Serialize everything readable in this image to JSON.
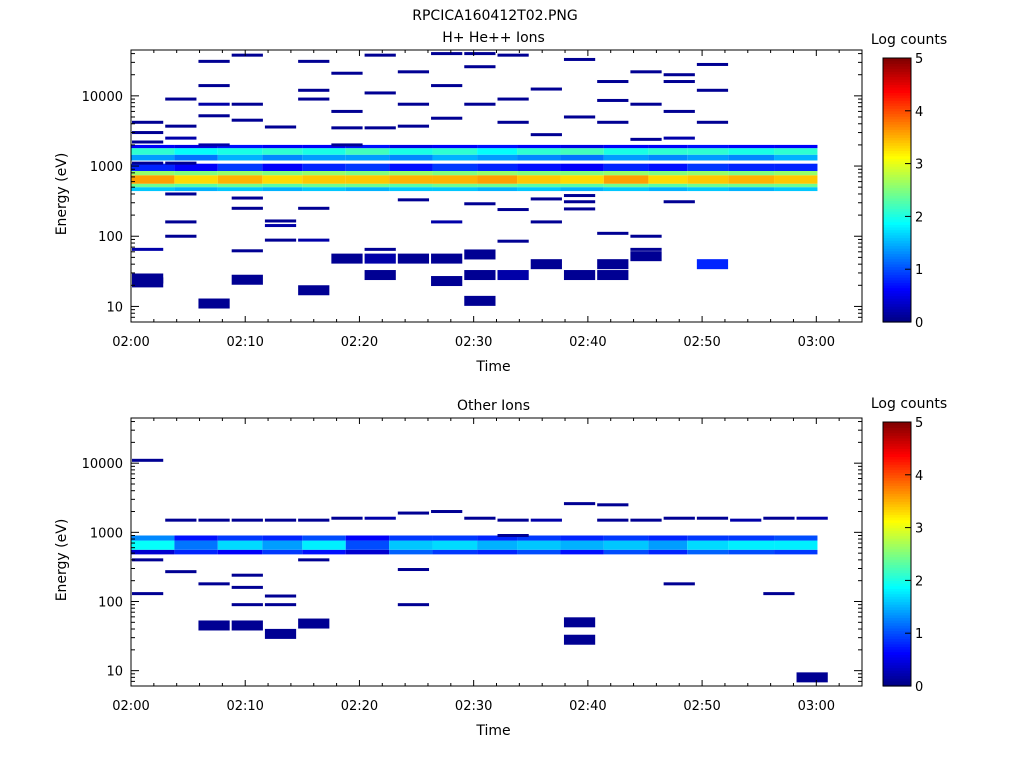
{
  "figure_title": "RPCICA160412T02.PNG",
  "colormap": [
    "#00007f",
    "#0000ff",
    "#007fff",
    "#00ffff",
    "#7fff7f",
    "#ffff00",
    "#ff7f00",
    "#ff0000",
    "#7f0000"
  ],
  "chart_data": [
    {
      "type": "heatmap",
      "title": "H+ He++ Ions",
      "xlabel": "Time",
      "ylabel": "Energy (eV)",
      "x_ticks": [
        "02:00",
        "02:10",
        "02:20",
        "02:30",
        "02:40",
        "02:50",
        "03:00"
      ],
      "y_ticks": [
        "10",
        "100",
        "1000",
        "10000"
      ],
      "y_scale": "log",
      "ylim": [
        6,
        45000
      ],
      "xlim_minutes": [
        0,
        64
      ],
      "colorbar": {
        "label": "Log counts",
        "range": [
          0,
          5
        ],
        "ticks": [
          "0",
          "1",
          "2",
          "3",
          "4",
          "5"
        ]
      },
      "time_bins_minutes": [
        0,
        3.8,
        7.6,
        11.5,
        15,
        18.8,
        22.6,
        26.4,
        30.3,
        33.8,
        37.6,
        41.4,
        45.3,
        48.7,
        52.3,
        56.3,
        60.1
      ],
      "bands": [
        {
          "e_min": 440,
          "e_max": 500,
          "values": [
            1.6,
            1.5,
            1.6,
            1.5,
            1.6,
            1.5,
            1.6,
            1.6,
            1.5,
            1.6,
            1.5,
            1.6,
            1.5,
            1.6,
            1.5,
            1.6
          ]
        },
        {
          "e_min": 500,
          "e_max": 560,
          "values": [
            2.4,
            2.3,
            2.4,
            2.3,
            2.4,
            2.4,
            2.3,
            2.4,
            2.4,
            2.3,
            2.3,
            2.4,
            2.3,
            2.4,
            2.4,
            2.4
          ]
        },
        {
          "e_min": 560,
          "e_max": 740,
          "values": [
            3.6,
            3.3,
            3.5,
            3.3,
            3.4,
            3.4,
            3.5,
            3.5,
            3.6,
            3.4,
            3.3,
            3.6,
            3.3,
            3.4,
            3.5,
            3.4
          ]
        },
        {
          "e_min": 740,
          "e_max": 850,
          "values": [
            2.6,
            2.5,
            2.6,
            2.5,
            2.6,
            2.5,
            2.6,
            2.5,
            2.6,
            2.5,
            2.5,
            2.6,
            2.5,
            2.6,
            2.5,
            2.6
          ]
        },
        {
          "e_min": 850,
          "e_max": 1080,
          "values": [
            0.8,
            0.6,
            0.9,
            0.6,
            0.8,
            0.9,
            0.7,
            0.9,
            0.8,
            0.7,
            0.6,
            0.8,
            0.7,
            0.9,
            0.8,
            0.8
          ]
        },
        {
          "e_min": 1200,
          "e_max": 1450,
          "values": [
            1.4,
            1.2,
            1.5,
            1.3,
            1.4,
            1.4,
            1.3,
            1.5,
            1.4,
            1.3,
            1.2,
            1.4,
            1.3,
            1.4,
            1.3,
            1.5
          ]
        },
        {
          "e_min": 1450,
          "e_max": 1800,
          "values": [
            2.1,
            1.9,
            2.0,
            2.1,
            2.0,
            2.2,
            2.0,
            2.1,
            1.9,
            2.1,
            2.2,
            2.0,
            2.1,
            2.1,
            2.0,
            2.1
          ]
        },
        {
          "e_min": 1800,
          "e_max": 2000,
          "values": [
            0.6,
            0.5,
            0.7,
            0.6,
            0.6,
            0.7,
            0.5,
            0.6,
            0.7,
            0.6,
            0.5,
            0.6,
            0.6,
            0.7,
            0.6,
            0.6
          ]
        }
      ],
      "scatter": [
        [
          0,
          2200,
          0.1
        ],
        [
          0,
          1100,
          0.1
        ],
        [
          0,
          4200,
          0.1
        ],
        [
          0,
          3000,
          0.1
        ],
        [
          0,
          25,
          0.1
        ],
        [
          0,
          22,
          0.1
        ],
        [
          0,
          65,
          0.2
        ],
        [
          1,
          3700,
          0.1
        ],
        [
          1,
          1100,
          0.1
        ],
        [
          1,
          9000,
          0.1
        ],
        [
          1,
          2500,
          0.2
        ],
        [
          1,
          160,
          0.1
        ],
        [
          1,
          100,
          0.1
        ],
        [
          1,
          400,
          0.1
        ],
        [
          2,
          31000,
          0.1
        ],
        [
          2,
          14000,
          0.1
        ],
        [
          2,
          5200,
          0.1
        ],
        [
          2,
          2000,
          0.2
        ],
        [
          2,
          11,
          0.1
        ],
        [
          2,
          7600,
          0.2
        ],
        [
          3,
          38000,
          0.1
        ],
        [
          3,
          7600,
          0.1
        ],
        [
          3,
          4500,
          0.1
        ],
        [
          3,
          350,
          0.1
        ],
        [
          3,
          250,
          0.1
        ],
        [
          3,
          62,
          0.1
        ],
        [
          3,
          24,
          0.1
        ],
        [
          4,
          3600,
          0.1
        ],
        [
          4,
          165,
          0.1
        ],
        [
          4,
          142,
          0.2
        ],
        [
          4,
          88,
          0.1
        ],
        [
          5,
          31000,
          0.1
        ],
        [
          5,
          9000,
          0.1
        ],
        [
          5,
          12000,
          0.1
        ],
        [
          5,
          250,
          0.1
        ],
        [
          5,
          88,
          0.2
        ],
        [
          5,
          17,
          0.1
        ],
        [
          6,
          21000,
          0.1
        ],
        [
          6,
          6000,
          0.1
        ],
        [
          6,
          3500,
          0.1
        ],
        [
          6,
          2000,
          0.1
        ],
        [
          6,
          48,
          0.1
        ],
        [
          7,
          38000,
          0.1
        ],
        [
          7,
          11000,
          0.1
        ],
        [
          7,
          3500,
          0.1
        ],
        [
          7,
          65,
          0.1
        ],
        [
          7,
          28,
          0.1
        ],
        [
          7,
          48,
          0.2
        ],
        [
          8,
          22000,
          0.1
        ],
        [
          8,
          7600,
          0.1
        ],
        [
          8,
          3700,
          0.1
        ],
        [
          8,
          330,
          0.1
        ],
        [
          8,
          48,
          0.1
        ],
        [
          9,
          40000,
          0.1
        ],
        [
          9,
          14000,
          0.1
        ],
        [
          9,
          4800,
          0.1
        ],
        [
          9,
          160,
          0.2
        ],
        [
          9,
          23,
          0.1
        ],
        [
          9,
          48,
          0.1
        ],
        [
          10,
          40000,
          0.1
        ],
        [
          10,
          26000,
          0.1
        ],
        [
          10,
          7600,
          0.1
        ],
        [
          10,
          290,
          0.1
        ],
        [
          10,
          55,
          0.1
        ],
        [
          10,
          28,
          0.1
        ],
        [
          10,
          12,
          0.1
        ],
        [
          11,
          38000,
          0.1
        ],
        [
          11,
          9000,
          0.1
        ],
        [
          11,
          4200,
          0.1
        ],
        [
          11,
          240,
          0.1
        ],
        [
          11,
          85,
          0.1
        ],
        [
          11,
          28,
          0.2
        ],
        [
          12,
          12500,
          0.1
        ],
        [
          12,
          2800,
          0.1
        ],
        [
          12,
          340,
          0.1
        ],
        [
          12,
          160,
          0.1
        ],
        [
          12,
          40,
          0.1
        ],
        [
          13,
          33000,
          0.1
        ],
        [
          13,
          5000,
          0.1
        ],
        [
          13,
          380,
          0.1
        ],
        [
          13,
          310,
          0.1
        ],
        [
          13,
          245,
          0.1
        ],
        [
          13,
          28,
          0.1
        ],
        [
          14,
          16000,
          0.1
        ],
        [
          14,
          8600,
          0.1
        ],
        [
          14,
          4200,
          0.1
        ],
        [
          14,
          110,
          0.1
        ],
        [
          14,
          40,
          0.1
        ],
        [
          14,
          28,
          0.1
        ],
        [
          15,
          22000,
          0.1
        ],
        [
          15,
          7600,
          0.1
        ],
        [
          15,
          2400,
          0.1
        ],
        [
          15,
          100,
          0.1
        ],
        [
          15,
          65,
          0.1
        ],
        [
          15,
          52,
          0.1
        ],
        [
          16,
          20000,
          0.1
        ],
        [
          16,
          16000,
          0.1
        ],
        [
          16,
          6000,
          0.1
        ],
        [
          16,
          2500,
          0.2
        ],
        [
          16,
          310,
          0.1
        ],
        [
          17,
          28000,
          0.1
        ],
        [
          17,
          12000,
          0.1
        ],
        [
          17,
          4200,
          0.1
        ],
        [
          17,
          40,
          0.8
        ]
      ]
    },
    {
      "type": "heatmap",
      "title": "Other Ions",
      "xlabel": "Time",
      "ylabel": "Energy (eV)",
      "x_ticks": [
        "02:00",
        "02:10",
        "02:20",
        "02:30",
        "02:40",
        "02:50",
        "03:00"
      ],
      "y_ticks": [
        "10",
        "100",
        "1000",
        "10000"
      ],
      "y_scale": "log",
      "ylim": [
        6,
        45000
      ],
      "xlim_minutes": [
        0,
        64
      ],
      "colorbar": {
        "label": "Log counts",
        "range": [
          0,
          5
        ],
        "ticks": [
          "0",
          "1",
          "2",
          "3",
          "4",
          "5"
        ]
      },
      "time_bins_minutes": [
        0,
        3.8,
        7.6,
        11.5,
        15,
        18.8,
        22.6,
        26.4,
        30.3,
        33.8,
        37.6,
        41.4,
        45.3,
        48.7,
        52.3,
        56.3,
        60.1
      ],
      "bands": [
        {
          "e_min": 480,
          "e_max": 560,
          "values": [
            0.4,
            0.8,
            0.6,
            0.9,
            0.7,
            0.4,
            1.1,
            0.9,
            0.8,
            1.0,
            0.7,
            1.0,
            0.8,
            1.1,
            1.0,
            0.9
          ]
        },
        {
          "e_min": 560,
          "e_max": 760,
          "values": [
            1.9,
            1.2,
            1.7,
            1.4,
            1.8,
            1.0,
            1.6,
            1.7,
            1.5,
            1.6,
            1.5,
            1.6,
            1.4,
            1.7,
            1.8,
            1.8
          ]
        },
        {
          "e_min": 760,
          "e_max": 900,
          "values": [
            1.3,
            0.7,
            0.9,
            0.8,
            1.0,
            0.6,
            0.9,
            0.9,
            0.8,
            0.9,
            0.8,
            0.9,
            0.8,
            0.9,
            0.9,
            1.0
          ]
        }
      ],
      "scatter": [
        [
          0,
          11000,
          0.1
        ],
        [
          0,
          400,
          0.1
        ],
        [
          0,
          130,
          0.1
        ],
        [
          1,
          1500,
          0.1
        ],
        [
          1,
          270,
          0.1
        ],
        [
          2,
          1500,
          0.1
        ],
        [
          2,
          180,
          0.1
        ],
        [
          2,
          45,
          0.1
        ],
        [
          3,
          1500,
          0.1
        ],
        [
          3,
          240,
          0.1
        ],
        [
          3,
          160,
          0.1
        ],
        [
          3,
          90,
          0.1
        ],
        [
          3,
          45,
          0.1
        ],
        [
          4,
          1500,
          0.1
        ],
        [
          4,
          120,
          0.1
        ],
        [
          4,
          90,
          0.1
        ],
        [
          4,
          34,
          0.1
        ],
        [
          5,
          1500,
          0.1
        ],
        [
          5,
          400,
          0.1
        ],
        [
          5,
          48,
          0.1
        ],
        [
          6,
          1600,
          0.1
        ],
        [
          7,
          1600,
          0.2
        ],
        [
          8,
          1900,
          0.1
        ],
        [
          8,
          290,
          0.1
        ],
        [
          8,
          90,
          0.1
        ],
        [
          9,
          2000,
          0.1
        ],
        [
          10,
          1600,
          0.1
        ],
        [
          11,
          1500,
          0.1
        ],
        [
          11,
          900,
          0.1
        ],
        [
          12,
          1500,
          0.2
        ],
        [
          13,
          2600,
          0.1
        ],
        [
          13,
          50,
          0.1
        ],
        [
          13,
          28,
          0.1
        ],
        [
          14,
          2500,
          0.1
        ],
        [
          14,
          1500,
          0.1
        ],
        [
          15,
          1500,
          0.1
        ],
        [
          16,
          1600,
          0.1
        ],
        [
          16,
          180,
          0.1
        ],
        [
          17,
          1600,
          0.1
        ],
        [
          18,
          1500,
          0.2
        ],
        [
          19,
          1600,
          0.1
        ],
        [
          19,
          130,
          0.1
        ],
        [
          20,
          1600,
          0.2
        ],
        [
          20,
          8,
          0.1
        ]
      ]
    }
  ]
}
